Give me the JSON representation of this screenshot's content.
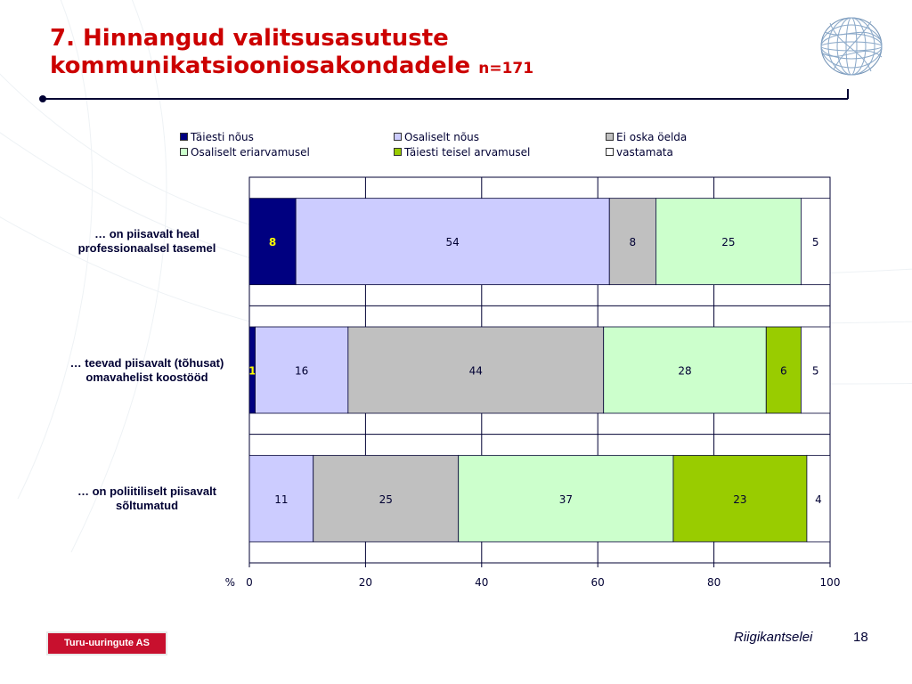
{
  "slide": {
    "title_line1": "7. Hinnangud valitsusasutuste",
    "title_line2": "kommunikatsiooniosakondadele",
    "title_n": "n=171",
    "footer_logo": "Turu-uuringute AS",
    "footer_org": "Riigikantselei",
    "page_number": "18"
  },
  "colors": {
    "title": "#cc0000",
    "rule": "#000033",
    "series": [
      "#000080",
      "#ccccff",
      "#c0c0c0",
      "#ccffcc",
      "#99cc00",
      "#ffffff"
    ]
  },
  "chart_data": {
    "type": "bar",
    "orientation": "horizontal",
    "stacked": true,
    "categories": [
      "… on piisavalt heal professionaalsel tasemel",
      "… teevad piisavalt (tõhusat) omavahelist koostööd",
      "… on poliitiliselt piisavalt sõltumatud"
    ],
    "series": [
      {
        "name": "Täiesti nõus",
        "values": [
          8,
          1,
          0
        ]
      },
      {
        "name": "Osaliselt nõus",
        "values": [
          54,
          16,
          11
        ]
      },
      {
        "name": "Ei oska öelda",
        "values": [
          8,
          44,
          25
        ]
      },
      {
        "name": "Osaliselt eriarvamusel",
        "values": [
          25,
          28,
          37
        ]
      },
      {
        "name": "Täiesti teisel arvamusel",
        "values": [
          0,
          6,
          23
        ]
      },
      {
        "name": "vastamata",
        "values": [
          5,
          5,
          4
        ]
      }
    ],
    "xlabel": "%",
    "xlim": [
      0,
      100
    ],
    "xticks": [
      0,
      20,
      40,
      60,
      80,
      100
    ],
    "grid": true,
    "legend_position": "top"
  }
}
